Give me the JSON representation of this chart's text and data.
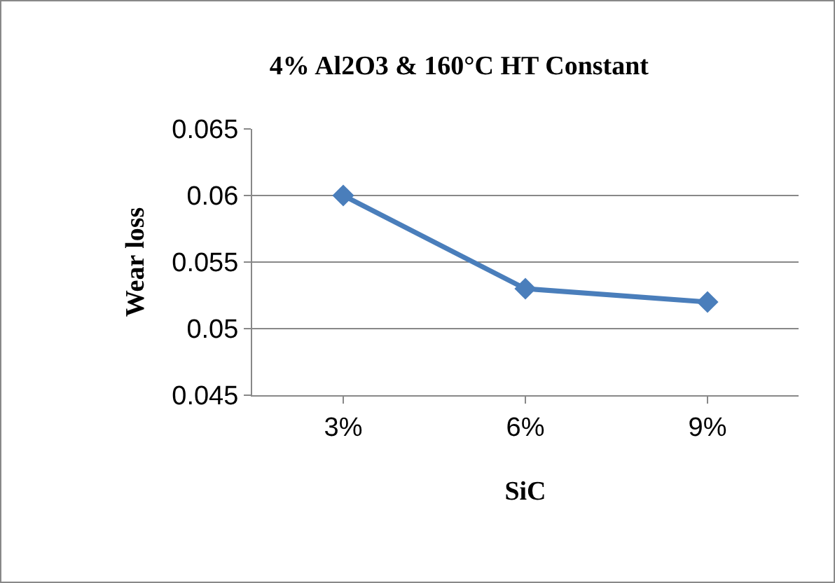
{
  "chart_data": {
    "type": "line",
    "title": "4% Al2O3 & 160°C HT Constant",
    "xlabel": "SiC",
    "ylabel": "Wear loss",
    "categories": [
      "3%",
      "6%",
      "9%"
    ],
    "series": [
      {
        "color": "#4a7ebb",
        "values": [
          0.06,
          0.053,
          0.052
        ]
      }
    ],
    "ylim": [
      0.045,
      0.065
    ],
    "yticks": [
      0.045,
      0.05,
      0.055,
      0.06,
      0.065
    ],
    "grid": "y",
    "marker": "diamond",
    "line_style": "solid"
  }
}
